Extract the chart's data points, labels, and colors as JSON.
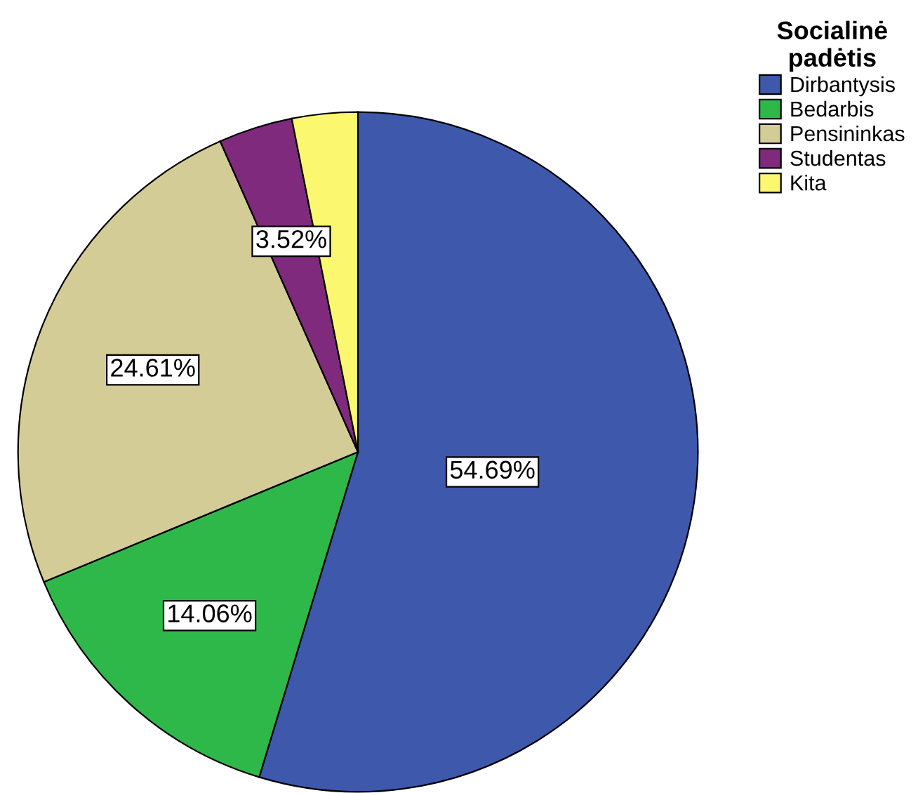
{
  "chart_data": {
    "type": "pie",
    "legend_title": "Socialinė\npadėtis",
    "legend": "top right",
    "categories": [
      "Dirbantysis",
      "Bedarbis",
      "Pensininkas",
      "Studentas",
      "Kita"
    ],
    "values": [
      54.69,
      14.06,
      24.61,
      3.52,
      3.12
    ],
    "colors": [
      "#3e58ac",
      "#2fb84a",
      "#d4cc96",
      "#7f2a7d",
      "#fbf870"
    ],
    "value_labels": [
      "54.69%",
      "14.06%",
      "24.61%",
      "3.52%",
      null
    ]
  }
}
